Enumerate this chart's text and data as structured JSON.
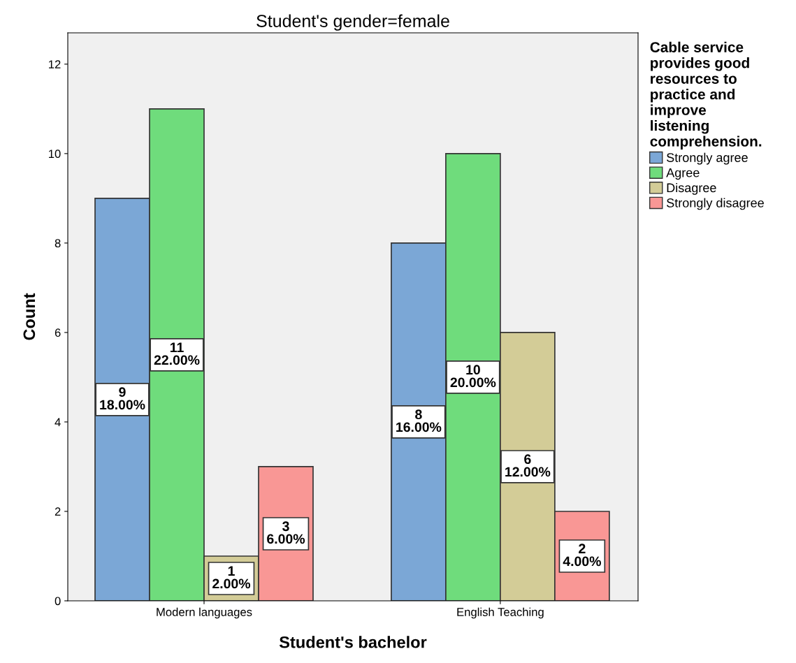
{
  "chart_data": {
    "type": "bar",
    "title": "Student's gender=female",
    "xlabel": "Student's bachelor",
    "ylabel": "Count",
    "legend_title": "Cable service\nprovides good\nresources to\npractice and\nimprove\nlistening\ncomprehension.",
    "categories": [
      "Modern languages",
      "English Teaching"
    ],
    "series": [
      {
        "name": "Strongly agree",
        "color": "#7ba7d6",
        "values": [
          9,
          8
        ],
        "value_labels": [
          "9\n18.00%",
          "8\n16.00%"
        ]
      },
      {
        "name": "Agree",
        "color": "#6fdc7c",
        "values": [
          11,
          10
        ],
        "value_labels": [
          "11\n22.00%",
          "10\n20.00%"
        ]
      },
      {
        "name": "Disagree",
        "color": "#d3cc97",
        "values": [
          1,
          6
        ],
        "value_labels": [
          "1\n2.00%",
          "6\n12.00%"
        ]
      },
      {
        "name": "Strongly disagree",
        "color": "#f99795",
        "values": [
          3,
          2
        ],
        "value_labels": [
          "3\n6.00%",
          "2\n4.00%"
        ]
      }
    ],
    "ylim": [
      0,
      12.7
    ],
    "yticks": [
      0,
      2,
      4,
      6,
      8,
      10,
      12
    ],
    "grid": false,
    "legend": "top right"
  }
}
